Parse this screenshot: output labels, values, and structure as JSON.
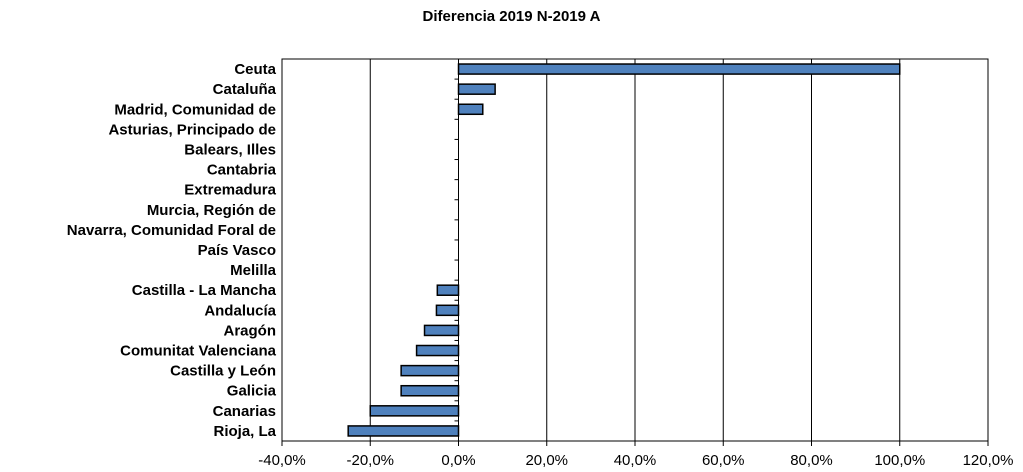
{
  "chart_data": {
    "type": "bar",
    "orientation": "horizontal",
    "title": "Diferencia 2019 N-2019 A",
    "xlabel": "",
    "ylabel": "",
    "xlim": [
      -40,
      120
    ],
    "x_ticks": [
      -40,
      -20,
      0,
      20,
      40,
      60,
      80,
      100,
      120
    ],
    "x_tick_labels": [
      "-40,0%",
      "-20,0%",
      "0,0%",
      "20,0%",
      "40,0%",
      "60,0%",
      "80,0%",
      "100,0%",
      "120,0%"
    ],
    "grid": "vertical",
    "legend": "none",
    "bar_color": "#4f81bd",
    "categories": [
      "Ceuta",
      "Cataluña",
      "Madrid, Comunidad de",
      "Asturias, Principado de",
      "Balears, Illes",
      "Cantabria",
      "Extremadura",
      "Murcia, Región de",
      "Navarra, Comunidad Foral de",
      "País Vasco",
      "Melilla",
      "Castilla - La Mancha",
      "Andalucía",
      "Aragón",
      "Comunitat Valenciana",
      "Castilla y León",
      "Galicia",
      "Canarias",
      "Rioja, La"
    ],
    "values": [
      100.0,
      8.3,
      5.5,
      0,
      0,
      0,
      0,
      0,
      0,
      0,
      0,
      -4.8,
      -5.0,
      -7.7,
      -9.5,
      -13.0,
      -13.0,
      -20.0,
      -25.0
    ]
  }
}
